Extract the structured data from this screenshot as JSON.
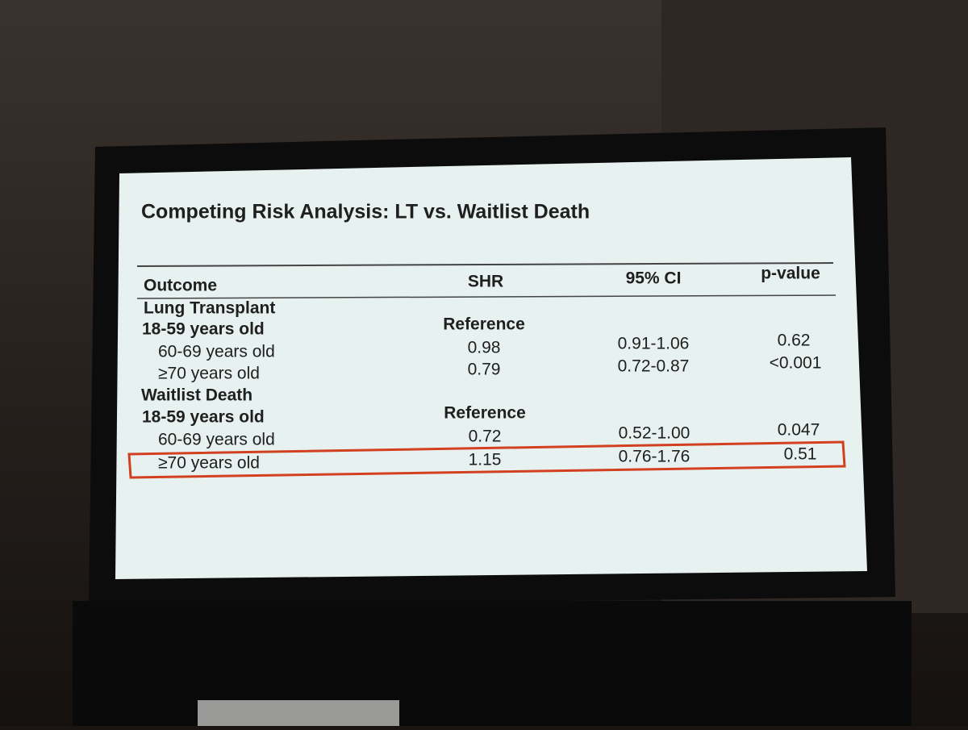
{
  "slide": {
    "title": "Competing Risk Analysis: LT vs. Waitlist Death"
  },
  "table": {
    "header": [
      "Outcome",
      "SHR",
      "95% CI",
      "p-value"
    ],
    "rows": [
      {
        "label": "Lung Transplant"
      },
      {
        "label": "18-59 years old",
        "shr": "Reference"
      },
      {
        "label": "60-69 years old",
        "shr": "0.98",
        "ci": "0.91-1.06",
        "p": "0.62"
      },
      {
        "label": "≥70 years old",
        "shr": "0.79",
        "ci": "0.72-0.87",
        "p": "<0.001"
      },
      {
        "label": "Waitlist Death"
      },
      {
        "label": "18-59 years old",
        "shr": "Reference"
      },
      {
        "label": "60-69 years old",
        "shr": "0.72",
        "ci": "0.52-1.00",
        "p": "0.047"
      },
      {
        "label": "≥70 years old",
        "shr": "1.15",
        "ci": "0.76-1.76",
        "p": "0.51"
      }
    ]
  }
}
